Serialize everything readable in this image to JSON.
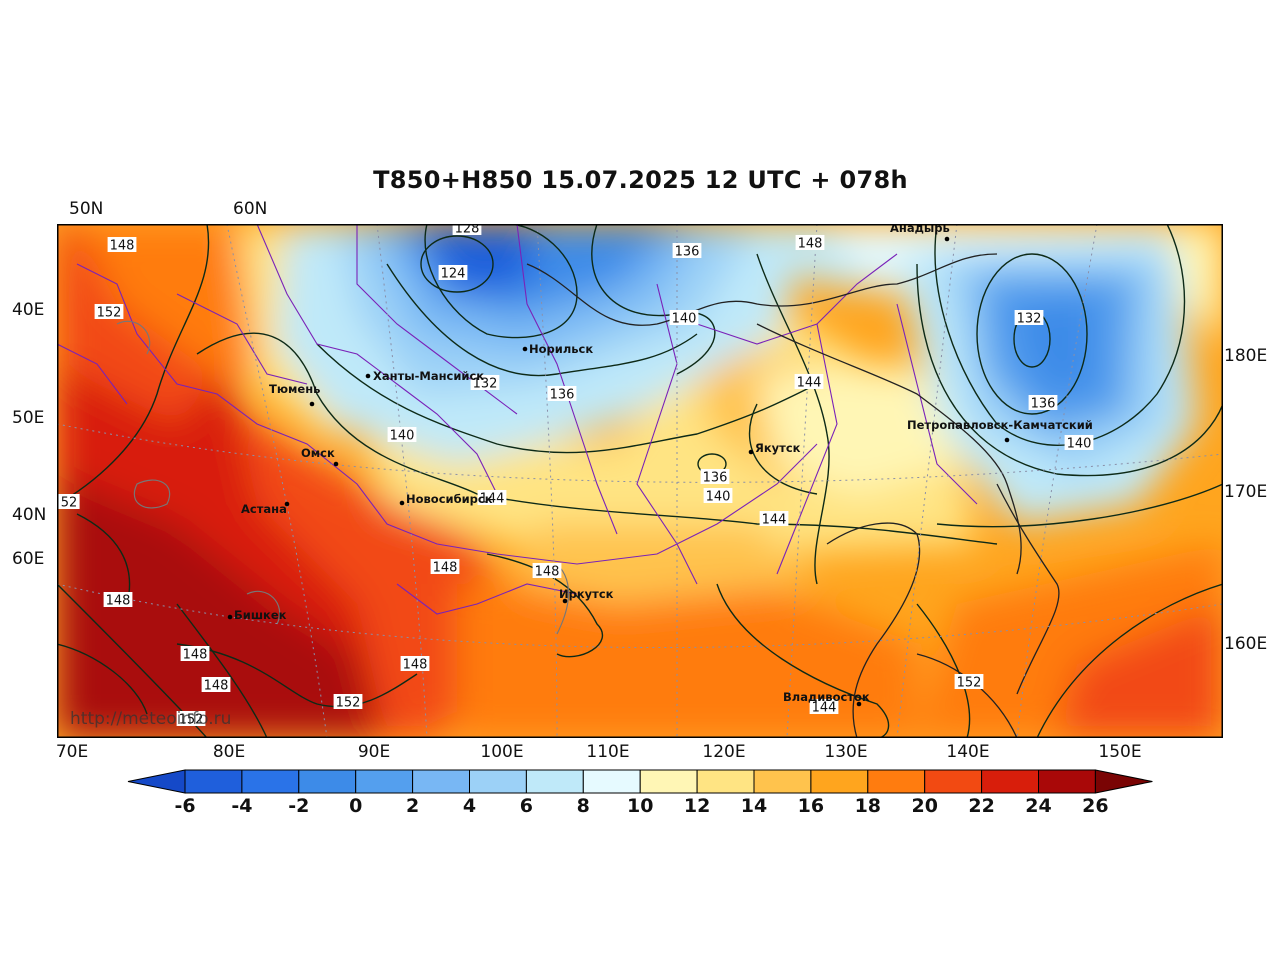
{
  "title": "T850+H850 15.07.2025 12 UTC + 078h",
  "watermark": "http://meteoinfo.ru",
  "axes": {
    "top": [
      "50N",
      "60N"
    ],
    "left": [
      "40E",
      "50E",
      "40N",
      "60E"
    ],
    "right": [
      "180E",
      "170E",
      "160E"
    ],
    "bottom": [
      "70E",
      "80E",
      "90E",
      "100E",
      "110E",
      "120E",
      "130E",
      "140E",
      "150E"
    ]
  },
  "cities": [
    {
      "name": "Анадырь"
    },
    {
      "name": "Норильск"
    },
    {
      "name": "Ханты-Мансийск"
    },
    {
      "name": "Тюмень"
    },
    {
      "name": "Петропавловск-Камчатский"
    },
    {
      "name": "Якутск"
    },
    {
      "name": "Омск"
    },
    {
      "name": "Новосибирск"
    },
    {
      "name": "Астана"
    },
    {
      "name": "Иркутск"
    },
    {
      "name": "Бишкек"
    },
    {
      "name": "Владивосток"
    }
  ],
  "contour_labels": [
    "128",
    "148",
    "124",
    "136",
    "148",
    "152",
    "140",
    "132",
    "136",
    "140",
    "144",
    "136",
    "140",
    "144",
    "144",
    "52",
    "148",
    "148",
    "148",
    "148",
    "148",
    "148",
    "152",
    "144",
    "152",
    "132",
    "136",
    "140",
    "152"
  ],
  "colorbar": {
    "ticks": [
      "-6",
      "-4",
      "-2",
      "0",
      "2",
      "4",
      "6",
      "8",
      "10",
      "12",
      "14",
      "16",
      "18",
      "20",
      "22",
      "24",
      "26"
    ],
    "colors": [
      "#1f5fdc",
      "#2a73e8",
      "#3d8be8",
      "#549fee",
      "#78b7f4",
      "#9cd1f7",
      "#bfe9f9",
      "#e6faff",
      "#fff6b5",
      "#ffe483",
      "#ffc34d",
      "#ffa51e",
      "#ff7c0f",
      "#f24a12",
      "#d81e0b",
      "#a90808"
    ],
    "under_color": "#1549c8",
    "over_color": "#7a0404"
  }
}
